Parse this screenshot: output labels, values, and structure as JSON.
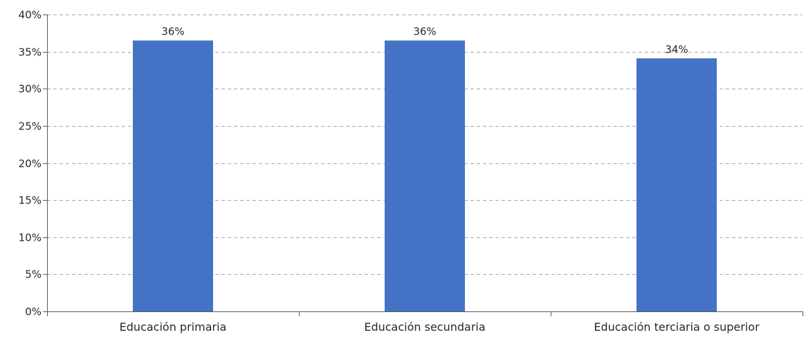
{
  "chart_data": {
    "type": "bar",
    "title": "",
    "xlabel": "",
    "ylabel": "",
    "categories": [
      "Educación primaria",
      "Educación secundaria",
      "Educación terciaria o superior"
    ],
    "values": [
      36.5,
      36.5,
      34.1
    ],
    "data_labels": [
      "36%",
      "36%",
      "34%"
    ],
    "ylim": [
      0,
      40
    ],
    "y_ticks": [
      0,
      5,
      10,
      15,
      20,
      25,
      30,
      35,
      40
    ],
    "y_tick_labels": [
      "0%",
      "5%",
      "10%",
      "15%",
      "20%",
      "25%",
      "30%",
      "35%",
      "40%"
    ],
    "grid": true,
    "legend": "none",
    "bar_color": "#4472c4"
  }
}
